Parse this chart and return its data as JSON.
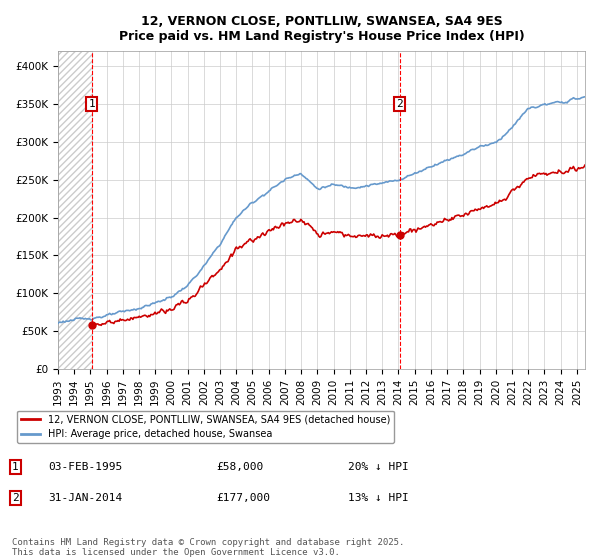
{
  "title": "12, VERNON CLOSE, PONTLLIW, SWANSEA, SA4 9ES",
  "subtitle": "Price paid vs. HM Land Registry's House Price Index (HPI)",
  "ylim": [
    0,
    420000
  ],
  "yticks": [
    0,
    50000,
    100000,
    150000,
    200000,
    250000,
    300000,
    350000,
    400000
  ],
  "marker1_date": "03-FEB-1995",
  "marker1_price": 58000,
  "marker1_hpi_diff": "20% ↓ HPI",
  "marker2_date": "31-JAN-2014",
  "marker2_price": 177000,
  "marker2_hpi_diff": "13% ↓ HPI",
  "legend_label1": "12, VERNON CLOSE, PONTLLIW, SWANSEA, SA4 9ES (detached house)",
  "legend_label2": "HPI: Average price, detached house, Swansea",
  "footnote": "Contains HM Land Registry data © Crown copyright and database right 2025.\nThis data is licensed under the Open Government Licence v3.0.",
  "line1_color": "#cc0000",
  "line2_color": "#6699cc",
  "background_color": "#ffffff",
  "grid_color": "#cccccc",
  "marker1_x": 1995.09,
  "marker2_x": 2014.08
}
